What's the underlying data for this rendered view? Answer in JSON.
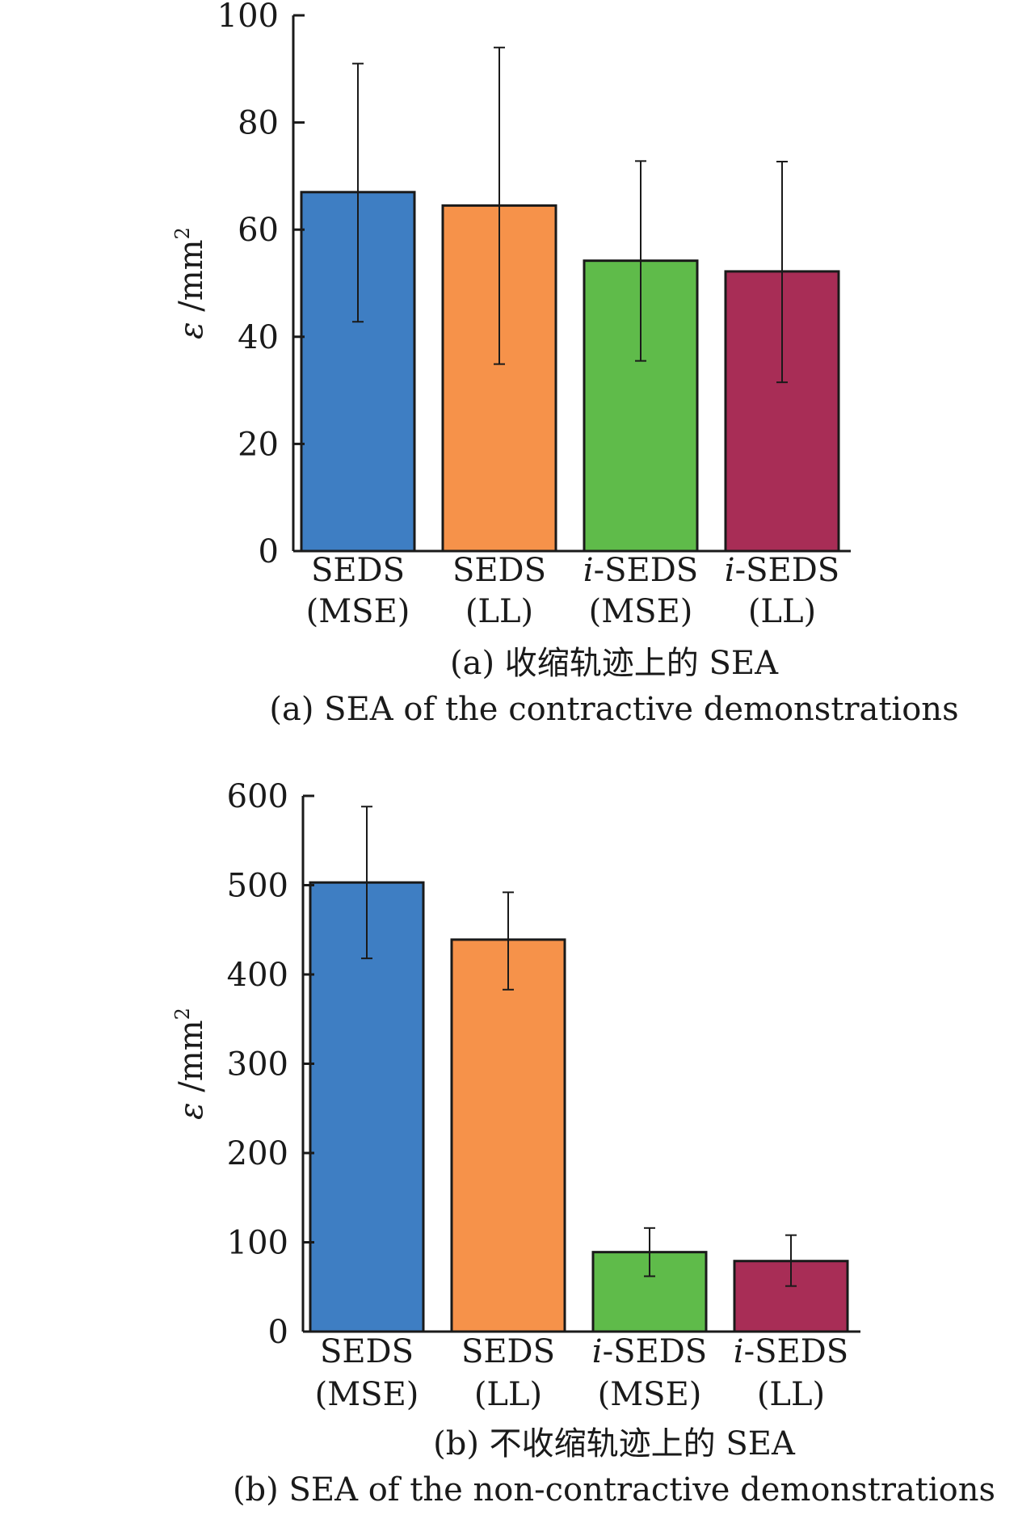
{
  "chart_data": [
    {
      "type": "bar",
      "id": "a",
      "categories": [
        {
          "line1": "SEDS",
          "line2": "(MSE)",
          "prefix": ""
        },
        {
          "line1": "SEDS",
          "line2": "(LL)",
          "prefix": ""
        },
        {
          "line1": "-SEDS",
          "line2": "(MSE)",
          "prefix": "i"
        },
        {
          "line1": "-SEDS",
          "line2": "(LL)",
          "prefix": "i"
        }
      ],
      "values": [
        67,
        64.5,
        54.2,
        52.2
      ],
      "error_low": [
        42.8,
        34.9,
        35.5,
        31.5
      ],
      "error_high": [
        91,
        94,
        72.8,
        72.7
      ],
      "colors": [
        "#3e7ec3",
        "#f6924a",
        "#5fbb4a",
        "#a82d56"
      ],
      "ylabel_symbol": "ε",
      "ylabel_unit": "/mm",
      "ylabel_exp": "2",
      "ylim": [
        0,
        100
      ],
      "yticks": [
        0,
        20,
        40,
        60,
        80,
        100
      ],
      "caption_cn": "(a) 收缩轨迹上的 SEA",
      "caption_en": "(a) SEA of the contractive demonstrations"
    },
    {
      "type": "bar",
      "id": "b",
      "categories": [
        {
          "line1": "SEDS",
          "line2": "(MSE)",
          "prefix": ""
        },
        {
          "line1": "SEDS",
          "line2": "(LL)",
          "prefix": ""
        },
        {
          "line1": "-SEDS",
          "line2": "(MSE)",
          "prefix": "i"
        },
        {
          "line1": "-SEDS",
          "line2": "(LL)",
          "prefix": "i"
        }
      ],
      "values": [
        503,
        439,
        89,
        79
      ],
      "error_low": [
        418,
        383,
        62,
        51
      ],
      "error_high": [
        588,
        492,
        116,
        108
      ],
      "colors": [
        "#3e7ec3",
        "#f6924a",
        "#5fbb4a",
        "#a82d56"
      ],
      "ylabel_symbol": "ε",
      "ylabel_unit": "/mm",
      "ylabel_exp": "2",
      "ylim": [
        0,
        600
      ],
      "yticks": [
        0,
        100,
        200,
        300,
        400,
        500,
        600
      ],
      "caption_cn": "(b) 不收缩轨迹上的 SEA",
      "caption_en": "(b) SEA of the non-contractive demonstrations"
    }
  ]
}
